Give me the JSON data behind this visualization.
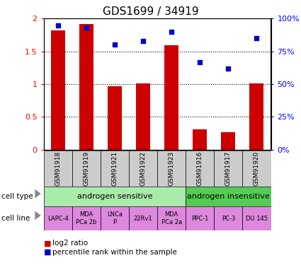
{
  "title": "GDS1699 / 34919",
  "samples": [
    "GSM91918",
    "GSM91919",
    "GSM91921",
    "GSM91922",
    "GSM91923",
    "GSM91916",
    "GSM91917",
    "GSM91920"
  ],
  "log2_ratio": [
    1.82,
    1.92,
    0.97,
    1.01,
    1.59,
    0.31,
    0.27,
    1.01
  ],
  "percentile_rank": [
    95,
    93,
    80,
    83,
    90,
    67,
    62,
    85
  ],
  "ylim_left": [
    0,
    2
  ],
  "ylim_right": [
    0,
    100
  ],
  "yticks_left": [
    0,
    0.5,
    1.0,
    1.5,
    2.0
  ],
  "yticks_right": [
    0,
    25,
    50,
    75,
    100
  ],
  "ytick_labels_left": [
    "0",
    "0.5",
    "1",
    "1.5",
    "2"
  ],
  "ytick_labels_right": [
    "0%",
    "25%",
    "50%",
    "75%",
    "100%"
  ],
  "bar_color": "#cc0000",
  "scatter_color": "#0000cc",
  "cell_type_groups": [
    {
      "label": "androgen sensitive",
      "start": 0,
      "end": 5,
      "color": "#aaeaaa"
    },
    {
      "label": "androgen insensitive",
      "start": 5,
      "end": 8,
      "color": "#55cc55"
    }
  ],
  "cell_lines": [
    "LAPC-4",
    "MDA\nPCa 2b",
    "LNCa\nP",
    "22Rv1",
    "MDA\nPCa 2a",
    "PPC-1",
    "PC-3",
    "DU 145"
  ],
  "cell_line_color": "#dd88dd",
  "sample_bg_color": "#cccccc",
  "legend_red_label": "log2 ratio",
  "legend_blue_label": "percentile rank within the sample",
  "hline_vals": [
    0.5,
    1.0,
    1.5
  ],
  "bar_width": 0.5
}
